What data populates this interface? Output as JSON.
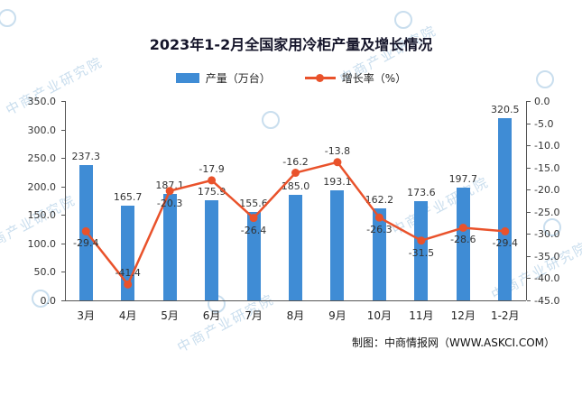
{
  "title": "2023年1-2月全国家用冷柜产量及增长情况",
  "legend": [
    {
      "label": "产量（万台）",
      "color": "#3f8cd5"
    },
    {
      "label": "增长率（%）",
      "color": "#e9522b"
    }
  ],
  "footer": "制图：中商情报网（WWW.ASKCI.COM）",
  "watermark": {
    "text": "中商产业研究院",
    "color": "#9dc3e0"
  },
  "chart_data": {
    "type": "bar+line",
    "title": "2023年1-2月全国家用冷柜产量及增长情况",
    "categories": [
      "3月",
      "4月",
      "5月",
      "6月",
      "7月",
      "8月",
      "9月",
      "10月",
      "11月",
      "12月",
      "1-2月"
    ],
    "series": [
      {
        "name": "产量（万台）",
        "type": "bar",
        "axis": "left",
        "color": "#3f8cd5",
        "values": [
          237.3,
          165.7,
          187.1,
          175.9,
          155.6,
          185.0,
          193.1,
          162.2,
          173.6,
          197.7,
          320.5
        ]
      },
      {
        "name": "增长率（%）",
        "type": "line",
        "axis": "right",
        "color": "#e9522b",
        "values": [
          -29.4,
          -41.4,
          -20.3,
          -17.9,
          -26.4,
          -16.2,
          -13.8,
          -26.3,
          -31.5,
          -28.6,
          -29.4
        ],
        "label_side": [
          "below",
          "above",
          "below",
          "above",
          "below",
          "above",
          "above",
          "below",
          "below",
          "below",
          "below"
        ]
      }
    ],
    "left_axis": {
      "min": 0,
      "max": 350,
      "step": 50,
      "ticks": [
        "350.0",
        "300.0",
        "250.0",
        "200.0",
        "150.0",
        "100.0",
        "50.0",
        "0.0"
      ]
    },
    "right_axis": {
      "min": -45,
      "max": 0,
      "step": 5,
      "ticks": [
        "0.0",
        "-5.0",
        "-10.0",
        "-15.0",
        "-20.0",
        "-25.0",
        "-30.0",
        "-35.0",
        "-40.0",
        "-45.0"
      ]
    },
    "grid": false,
    "legend_position": "top",
    "value_labels": true
  }
}
